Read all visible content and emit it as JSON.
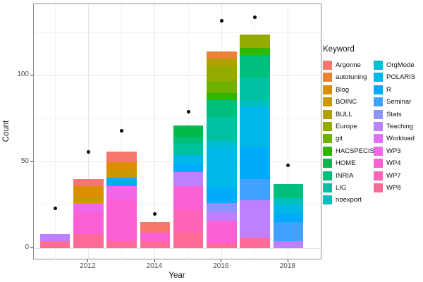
{
  "chart_data": {
    "type": "bar",
    "stacked": true,
    "xlabel": "Year",
    "ylabel": "Count",
    "legend_title": "Keyword",
    "legend_position": "right",
    "grid": true,
    "x": [
      2011,
      2012,
      2013,
      2014,
      2015,
      2016,
      2017,
      2018
    ],
    "x_ticks": [
      2012,
      2014,
      2016,
      2018
    ],
    "x_tick_labels": [
      "2012",
      "2014",
      "2016",
      "2018"
    ],
    "x_minor_ticks": [
      2011,
      2013,
      2015,
      2017
    ],
    "y_ticks": [
      0,
      50,
      100
    ],
    "y_tick_labels": [
      "0",
      "50",
      "100"
    ],
    "y_minor_ticks": [
      25,
      75,
      125
    ],
    "ylim": [
      -7,
      142
    ],
    "series": [
      {
        "name": "Argonne",
        "color": "#F8766D",
        "values": [
          0,
          4,
          6,
          6,
          0,
          0,
          0,
          0
        ]
      },
      {
        "name": "autotuning",
        "color": "#EB8335",
        "values": [
          0,
          0,
          0,
          0,
          0,
          4,
          0,
          0
        ]
      },
      {
        "name": "Blog",
        "color": "#DC8D00",
        "values": [
          0,
          6,
          5,
          0,
          0,
          0,
          0,
          0
        ]
      },
      {
        "name": "BOINC",
        "color": "#C99900",
        "values": [
          0,
          4,
          4,
          0,
          0,
          0,
          0,
          0
        ]
      },
      {
        "name": "BULL",
        "color": "#B2A100",
        "values": [
          0,
          0,
          0,
          0,
          0,
          4,
          0,
          0
        ]
      },
      {
        "name": "Europe",
        "color": "#95AA00",
        "values": [
          0,
          0,
          0,
          0,
          0,
          9,
          8,
          0
        ]
      },
      {
        "name": "git",
        "color": "#6FB000",
        "values": [
          0,
          0,
          0,
          0,
          0,
          7,
          0,
          0
        ]
      },
      {
        "name": "HACSPECIS",
        "color": "#2FB600",
        "values": [
          0,
          0,
          0,
          0,
          0,
          4,
          4,
          0
        ]
      },
      {
        "name": "HOME",
        "color": "#00BB4B",
        "values": [
          0,
          0,
          0,
          0,
          7,
          0,
          0,
          0
        ]
      },
      {
        "name": "INRIA",
        "color": "#00BE7C",
        "values": [
          0,
          0,
          0,
          0,
          4,
          10,
          13,
          8
        ]
      },
      {
        "name": "LIG",
        "color": "#00C1A2",
        "values": [
          0,
          0,
          0,
          0,
          6,
          14,
          13,
          0
        ]
      },
      {
        "name": "noexport",
        "color": "#00C0BF",
        "values": [
          0,
          0,
          0,
          0,
          0,
          0,
          4,
          4
        ]
      },
      {
        "name": "OrgMode",
        "color": "#00BDD6",
        "values": [
          0,
          0,
          0,
          0,
          0,
          4,
          0,
          0
        ]
      },
      {
        "name": "POLARIS",
        "color": "#00B7E9",
        "values": [
          0,
          0,
          0,
          0,
          5,
          23,
          23,
          5
        ]
      },
      {
        "name": "R",
        "color": "#00ACF9",
        "values": [
          0,
          0,
          5,
          0,
          5,
          9,
          19,
          5
        ]
      },
      {
        "name": "Seminar",
        "color": "#3FA2FF",
        "values": [
          0,
          0,
          0,
          0,
          0,
          0,
          12,
          11
        ]
      },
      {
        "name": "Stats",
        "color": "#8C93FF",
        "values": [
          0,
          0,
          0,
          0,
          0,
          5,
          0,
          0
        ]
      },
      {
        "name": "Teaching",
        "color": "#BE80FF",
        "values": [
          4,
          0,
          0,
          0,
          8,
          5,
          22,
          4
        ]
      },
      {
        "name": "Workload",
        "color": "#DF71F8",
        "values": [
          0,
          0,
          0,
          0,
          0,
          0,
          0,
          0
        ]
      },
      {
        "name": "WP3",
        "color": "#F166E8",
        "values": [
          0,
          5,
          7,
          0,
          0,
          0,
          0,
          0
        ]
      },
      {
        "name": "WP4",
        "color": "#FB61D5",
        "values": [
          0,
          13,
          25,
          5,
          14,
          13,
          0,
          0
        ]
      },
      {
        "name": "WP7",
        "color": "#FF64B7",
        "values": [
          0,
          0,
          0,
          0,
          13,
          0,
          0,
          0
        ]
      },
      {
        "name": "WP8",
        "color": "#FF6B97",
        "values": [
          4,
          8,
          4,
          4,
          9,
          3,
          6,
          0
        ]
      }
    ],
    "points": {
      "name": "points",
      "color": "#000000",
      "values": [
        23,
        56,
        68,
        20,
        79,
        132,
        134,
        48
      ]
    },
    "legend_columns": [
      12,
      11
    ]
  }
}
